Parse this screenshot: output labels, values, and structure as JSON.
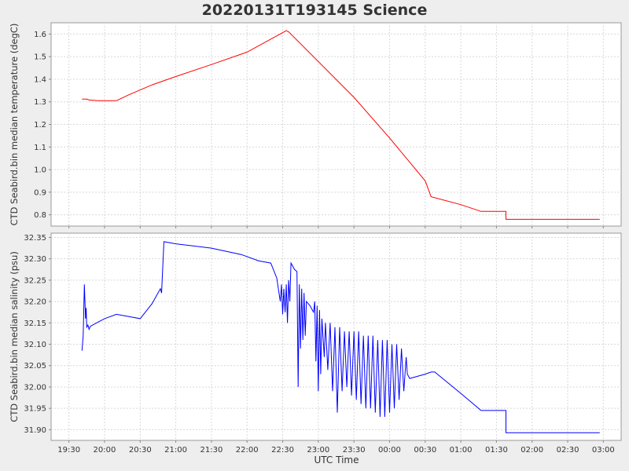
{
  "title": "20220131T193145 Science",
  "xlabel": "UTC Time",
  "colors": {
    "temperature": "#ff0000",
    "salinity": "#0000ff",
    "grid": "#d8d8d8",
    "plot_bg": "#ffffff"
  },
  "chart_data": [
    {
      "type": "line",
      "ylabel": "CTD Seabird.bin median temperature (degC)",
      "ylim": [
        0.75,
        1.65
      ],
      "yticks": [
        "0.8",
        "0.9",
        "1.0",
        "1.1",
        "1.2",
        "1.3",
        "1.4",
        "1.5",
        "1.6"
      ],
      "grid": true,
      "series": [
        {
          "color": "#ff0000",
          "points": [
            [
              "19:41",
              1.312
            ],
            [
              "19:45",
              1.312
            ],
            [
              "19:47",
              1.308
            ],
            [
              "19:55",
              1.305
            ],
            [
              "20:00",
              1.305
            ],
            [
              "20:10",
              1.305
            ],
            [
              "20:20",
              1.33
            ],
            [
              "20:40",
              1.375
            ],
            [
              "21:00",
              1.412
            ],
            [
              "21:30",
              1.465
            ],
            [
              "22:00",
              1.52
            ],
            [
              "22:33",
              1.615
            ],
            [
              "22:35",
              1.61
            ],
            [
              "23:30",
              1.32
            ],
            [
              "00:00",
              1.14
            ],
            [
              "00:30",
              0.95
            ],
            [
              "00:35",
              0.88
            ],
            [
              "01:00",
              0.845
            ],
            [
              "01:17",
              0.815
            ],
            [
              "01:38",
              0.815
            ],
            [
              "01:38",
              0.78
            ],
            [
              "02:57",
              0.78
            ]
          ]
        }
      ]
    },
    {
      "type": "line",
      "ylabel": "CTD Seabird.bin median salinity (psu)",
      "ylim": [
        31.875,
        32.36
      ],
      "yticks": [
        "31.90",
        "31.95",
        "32.00",
        "32.05",
        "32.10",
        "32.15",
        "32.20",
        "32.25",
        "32.30",
        "32.35"
      ],
      "grid": true,
      "series": [
        {
          "color": "#0000ff",
          "points": [
            [
              "19:41",
              32.085
            ],
            [
              "19:42",
              32.12
            ],
            [
              "19:43",
              32.24
            ],
            [
              "19:44",
              32.16
            ],
            [
              "19:44.5",
              32.185
            ],
            [
              "19:45",
              32.14
            ],
            [
              "19:46",
              32.145
            ],
            [
              "19:47",
              32.135
            ],
            [
              "19:48",
              32.142
            ],
            [
              "20:00",
              32.16
            ],
            [
              "20:10",
              32.17
            ],
            [
              "20:20",
              32.165
            ],
            [
              "20:30",
              32.16
            ],
            [
              "20:40",
              32.195
            ],
            [
              "20:47",
              32.23
            ],
            [
              "20:48",
              32.22
            ],
            [
              "20:50",
              32.34
            ],
            [
              "21:00",
              32.335
            ],
            [
              "21:30",
              32.325
            ],
            [
              "21:55",
              32.31
            ],
            [
              "22:10",
              32.295
            ],
            [
              "22:20",
              32.29
            ],
            [
              "22:25",
              32.255
            ],
            [
              "22:28",
              32.2
            ],
            [
              "22:29",
              32.24
            ],
            [
              "22:30",
              32.17
            ],
            [
              "22:31",
              32.23
            ],
            [
              "22:32",
              32.175
            ],
            [
              "22:33",
              32.24
            ],
            [
              "22:34",
              32.15
            ],
            [
              "22:35",
              32.25
            ],
            [
              "22:36",
              32.2
            ],
            [
              "22:37",
              32.29
            ],
            [
              "22:40",
              32.275
            ],
            [
              "22:42",
              32.27
            ],
            [
              "22:43",
              32.0
            ],
            [
              "22:44",
              32.24
            ],
            [
              "22:45",
              32.09
            ],
            [
              "22:46",
              32.23
            ],
            [
              "22:47",
              32.11
            ],
            [
              "22:48",
              32.22
            ],
            [
              "22:49",
              32.12
            ],
            [
              "22:50",
              32.2
            ],
            [
              "22:53",
              32.19
            ],
            [
              "22:56",
              32.175
            ],
            [
              "22:57",
              32.2
            ],
            [
              "22:58",
              32.06
            ],
            [
              "22:59",
              32.19
            ],
            [
              "23:00",
              31.99
            ],
            [
              "23:01",
              32.18
            ],
            [
              "23:02",
              32.03
            ],
            [
              "23:03",
              32.16
            ],
            [
              "23:05",
              32.07
            ],
            [
              "23:06",
              32.15
            ],
            [
              "23:08",
              32.04
            ],
            [
              "23:10",
              32.15
            ],
            [
              "23:12",
              31.99
            ],
            [
              "23:14",
              32.14
            ],
            [
              "23:16",
              31.94
            ],
            [
              "23:18",
              32.14
            ],
            [
              "23:20",
              31.99
            ],
            [
              "23:22",
              32.13
            ],
            [
              "23:24",
              32.0
            ],
            [
              "23:26",
              32.13
            ],
            [
              "23:28",
              31.98
            ],
            [
              "23:30",
              32.13
            ],
            [
              "23:32",
              31.97
            ],
            [
              "23:34",
              32.13
            ],
            [
              "23:36",
              31.96
            ],
            [
              "23:38",
              32.12
            ],
            [
              "23:40",
              31.95
            ],
            [
              "23:42",
              32.12
            ],
            [
              "23:44",
              31.95
            ],
            [
              "23:46",
              32.12
            ],
            [
              "23:48",
              31.94
            ],
            [
              "23:50",
              32.11
            ],
            [
              "23:52",
              31.93
            ],
            [
              "23:54",
              32.11
            ],
            [
              "23:56",
              31.93
            ],
            [
              "23:58",
              32.11
            ],
            [
              "00:00",
              31.94
            ],
            [
              "00:02",
              32.1
            ],
            [
              "00:04",
              31.95
            ],
            [
              "00:06",
              32.1
            ],
            [
              "00:08",
              31.97
            ],
            [
              "00:10",
              32.09
            ],
            [
              "00:12",
              31.99
            ],
            [
              "00:14",
              32.07
            ],
            [
              "00:15",
              32.03
            ],
            [
              "00:17",
              32.02
            ],
            [
              "00:30",
              32.03
            ],
            [
              "00:35",
              32.035
            ],
            [
              "00:38",
              32.035
            ],
            [
              "01:00",
              31.985
            ],
            [
              "01:17",
              31.945
            ],
            [
              "01:38",
              31.945
            ],
            [
              "01:38",
              31.893
            ],
            [
              "02:57",
              31.893
            ]
          ]
        }
      ]
    }
  ],
  "xaxis": {
    "range": [
      "19:15",
      "03:15"
    ],
    "ticks": [
      "19:30",
      "20:00",
      "20:30",
      "21:00",
      "21:30",
      "22:00",
      "22:30",
      "23:00",
      "23:30",
      "00:00",
      "00:30",
      "01:00",
      "01:30",
      "02:00",
      "02:30",
      "03:00"
    ]
  }
}
